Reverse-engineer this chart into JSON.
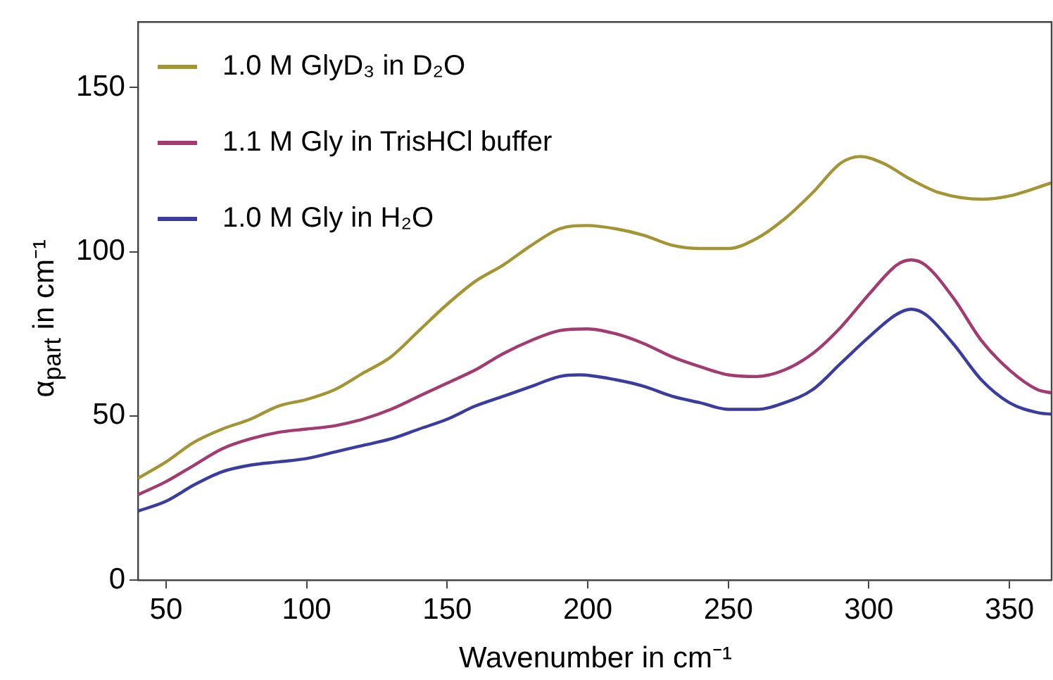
{
  "chart_data": {
    "type": "line",
    "xlabel": "Wavenumber in cm⁻¹",
    "ylabel": "α$_{part}$ in cm⁻¹",
    "xlim": [
      40,
      365
    ],
    "xticks": [
      50,
      100,
      150,
      200,
      250,
      300,
      350
    ],
    "ylim": [
      0,
      170
    ],
    "yticks": [
      0,
      50,
      100,
      150
    ],
    "grid": false,
    "legend": "top left",
    "marker": "none",
    "line_style": "solid",
    "series": [
      {
        "name": "1.0 M GlyD₃ in D₂O",
        "color": "#a39434",
        "x": [
          40,
          50,
          60,
          70,
          80,
          90,
          100,
          110,
          120,
          130,
          140,
          150,
          160,
          170,
          180,
          190,
          200,
          210,
          220,
          230,
          240,
          250,
          260,
          270,
          280,
          290,
          297,
          305,
          315,
          325,
          340,
          350,
          365
        ],
        "values": [
          31,
          36,
          42,
          46,
          49,
          53,
          55,
          58,
          63,
          68,
          76,
          84,
          91,
          96,
          102,
          107,
          108,
          107,
          105,
          102,
          101,
          101,
          104,
          110,
          118,
          127,
          129,
          127,
          122,
          118,
          116,
          117,
          121
        ]
      },
      {
        "name": "1.1 M Gly in TrisHCl buffer",
        "color": "#a33a70",
        "x": [
          40,
          50,
          60,
          70,
          80,
          90,
          100,
          110,
          120,
          130,
          140,
          150,
          160,
          170,
          180,
          190,
          200,
          210,
          220,
          230,
          240,
          250,
          260,
          270,
          280,
          290,
          300,
          310,
          315,
          320,
          330,
          340,
          350,
          360,
          365
        ],
        "values": [
          26,
          30,
          35,
          40,
          43,
          45,
          46,
          47,
          49,
          52,
          56,
          60,
          64,
          69,
          73,
          76,
          76.5,
          75,
          72,
          68,
          65,
          62.5,
          62,
          64,
          69,
          77,
          87,
          96,
          97.5,
          96,
          86,
          73,
          64,
          58,
          57
        ]
      },
      {
        "name": "1.0 M Gly in H₂O",
        "color": "#3b3ca0",
        "x": [
          40,
          50,
          60,
          70,
          80,
          90,
          100,
          110,
          120,
          130,
          140,
          150,
          160,
          170,
          180,
          190,
          197,
          210,
          220,
          230,
          240,
          250,
          260,
          270,
          280,
          290,
          300,
          310,
          315,
          320,
          330,
          340,
          350,
          360,
          365
        ],
        "values": [
          21,
          24,
          29,
          33,
          35,
          36,
          37,
          39,
          41,
          43,
          46,
          49,
          53,
          56,
          59,
          62,
          62.5,
          61,
          59,
          56,
          54,
          52,
          52,
          54,
          58,
          66,
          74,
          81,
          82.5,
          81,
          72,
          61,
          54,
          51,
          50.5
        ]
      }
    ]
  }
}
